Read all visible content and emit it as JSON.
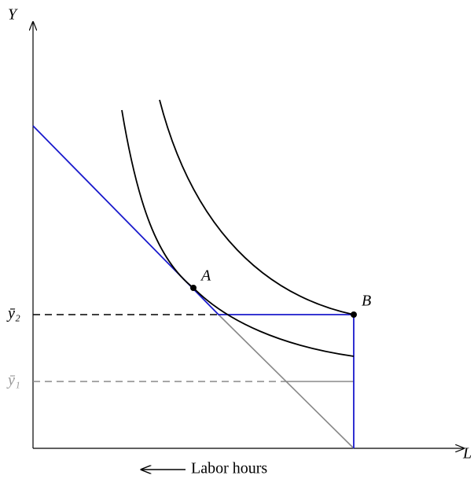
{
  "axes": {
    "y_label": "Y",
    "x_label": "L"
  },
  "levels": {
    "upper": "ȳ₂",
    "lower": "ȳ₁"
  },
  "points": {
    "a": "A",
    "b": "B"
  },
  "caption": "Labor hours"
}
